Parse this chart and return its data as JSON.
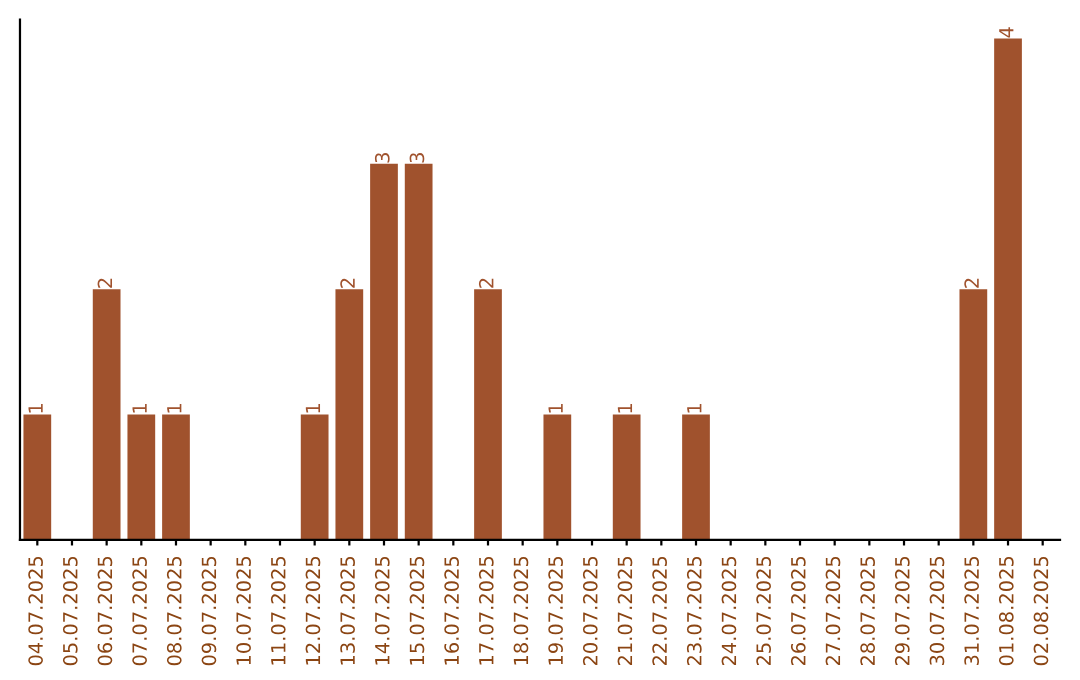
{
  "chart_data": {
    "type": "bar",
    "categories": [
      "04.07.2025",
      "05.07.2025",
      "06.07.2025",
      "07.07.2025",
      "08.07.2025",
      "09.07.2025",
      "10.07.2025",
      "11.07.2025",
      "12.07.2025",
      "13.07.2025",
      "14.07.2025",
      "15.07.2025",
      "16.07.2025",
      "17.07.2025",
      "18.07.2025",
      "19.07.2025",
      "20.07.2025",
      "21.07.2025",
      "22.07.2025",
      "23.07.2025",
      "24.07.2025",
      "25.07.2025",
      "26.07.2025",
      "27.07.2025",
      "28.07.2025",
      "29.07.2025",
      "30.07.2025",
      "31.07.2025",
      "01.08.2025",
      "02.08.2025"
    ],
    "values": [
      1,
      0,
      2,
      1,
      1,
      0,
      0,
      0,
      1,
      2,
      3,
      3,
      0,
      2,
      0,
      1,
      0,
      1,
      0,
      1,
      0,
      0,
      0,
      0,
      0,
      0,
      0,
      2,
      4,
      0
    ],
    "value_labels": [
      "1",
      null,
      "2",
      "1",
      "1",
      null,
      null,
      null,
      "1",
      "2",
      "3",
      "3",
      null,
      "2",
      null,
      "1",
      null,
      "1",
      null,
      "1",
      null,
      null,
      null,
      null,
      null,
      null,
      null,
      "2",
      "4",
      null
    ],
    "color": "#a0522d",
    "ylim": [
      0,
      4.15
    ],
    "grid": false
  }
}
